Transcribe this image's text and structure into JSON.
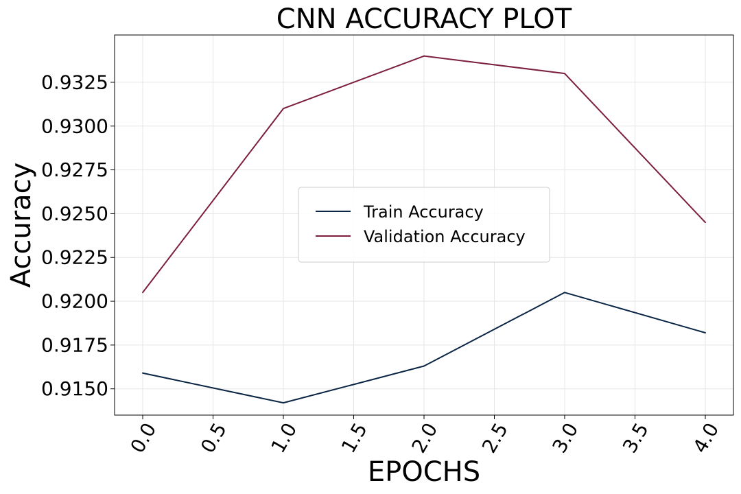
{
  "chart_data": {
    "type": "line",
    "title": "CNN ACCURACY PLOT",
    "xlabel": "EPOCHS",
    "ylabel": "Accuracy",
    "x": [
      0,
      1,
      2,
      3,
      4
    ],
    "xlim": [
      -0.2,
      4.2
    ],
    "ylim": [
      0.9135,
      0.9352
    ],
    "xticks": [
      0.0,
      0.5,
      1.0,
      1.5,
      2.0,
      2.5,
      3.0,
      3.5,
      4.0
    ],
    "xtick_labels": [
      "0.0",
      "0.5",
      "1.0",
      "1.5",
      "2.0",
      "2.5",
      "3.0",
      "3.5",
      "4.0"
    ],
    "yticks": [
      0.915,
      0.9175,
      0.92,
      0.9225,
      0.925,
      0.9275,
      0.93,
      0.9325
    ],
    "ytick_labels": [
      "0.9150",
      "0.9175",
      "0.9200",
      "0.9225",
      "0.9250",
      "0.9275",
      "0.9300",
      "0.9325"
    ],
    "grid": true,
    "legend_position": "center",
    "series": [
      {
        "name": "Train Accuracy",
        "color": "#0b2545",
        "values": [
          0.9159,
          0.9142,
          0.9163,
          0.9205,
          0.9182
        ]
      },
      {
        "name": "Validation Accuracy",
        "color": "#7b1e3f",
        "values": [
          0.9205,
          0.931,
          0.934,
          0.933,
          0.9245
        ]
      }
    ]
  }
}
